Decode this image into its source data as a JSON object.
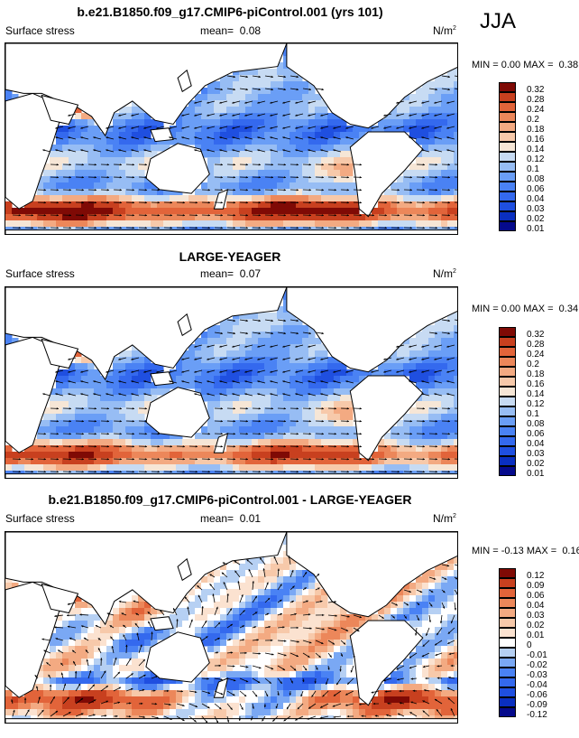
{
  "season": "JJA",
  "units_base": "N/m",
  "units_exp": "2",
  "panels": [
    {
      "title": "b.e21.B1850.f09_g17.CMIP6-piControl.001 (yrs 101)",
      "variable": "Surface stress",
      "mean_label": "mean=",
      "mean": "0.08",
      "min_label": "MIN =",
      "min": "0.00",
      "max_label": "MAX =",
      "max": "0.38"
    },
    {
      "title": "LARGE-YEAGER",
      "variable": "Surface stress",
      "mean_label": "mean=",
      "mean": "0.07",
      "min_label": "MIN =",
      "min": "0.00",
      "max_label": "MAX =",
      "max": "0.34"
    },
    {
      "title": "b.e21.B1850.f09_g17.CMIP6-piControl.001 - LARGE-YEAGER",
      "variable": "Surface stress",
      "mean_label": "mean=",
      "mean": "0.01",
      "min_label": "MIN =",
      "min": "-0.13",
      "max_label": "MAX =",
      "max": "0.16"
    }
  ],
  "chart_data": [
    {
      "type": "heatmap",
      "subtype": "global map, filled contours with wind-stress vectors",
      "title": "b.e21.B1850.f09_g17.CMIP6-piControl.001 (yrs 101)",
      "variable": "Surface stress",
      "units": "N/m^2",
      "mean": 0.08,
      "min": 0.0,
      "max": 0.38,
      "colorbar_levels": [
        0.01,
        0.02,
        0.03,
        0.04,
        0.06,
        0.08,
        0.1,
        0.12,
        0.14,
        0.16,
        0.18,
        0.2,
        0.24,
        0.28,
        0.32
      ],
      "colorbar_labels": [
        "0.01",
        "0.02",
        "0.03",
        "0.04",
        "0.06",
        "0.08",
        "0.1",
        "0.12",
        "0.14",
        "0.16",
        "0.18",
        "0.2",
        "0.24",
        "0.28",
        "0.32"
      ],
      "colorbar_colors": [
        "#050a8c",
        "#0a2fc0",
        "#1f4fe0",
        "#3469ee",
        "#4a82f4",
        "#6a9ef6",
        "#97bdf4",
        "#c7dbf3",
        "#f6e6d6",
        "#f7c9aa",
        "#f3aa82",
        "#ec875a",
        "#e2643a",
        "#c8401f",
        "#7f0a05"
      ]
    },
    {
      "type": "heatmap",
      "subtype": "global map, filled contours with wind-stress vectors",
      "title": "LARGE-YEAGER",
      "variable": "Surface stress",
      "units": "N/m^2",
      "mean": 0.07,
      "min": 0.0,
      "max": 0.34,
      "colorbar_levels": [
        0.01,
        0.02,
        0.03,
        0.04,
        0.06,
        0.08,
        0.1,
        0.12,
        0.14,
        0.16,
        0.18,
        0.2,
        0.24,
        0.28,
        0.32
      ],
      "colorbar_labels": [
        "0.01",
        "0.02",
        "0.03",
        "0.04",
        "0.06",
        "0.08",
        "0.1",
        "0.12",
        "0.14",
        "0.16",
        "0.18",
        "0.2",
        "0.24",
        "0.28",
        "0.32"
      ],
      "colorbar_colors": [
        "#050a8c",
        "#0a2fc0",
        "#1f4fe0",
        "#3469ee",
        "#4a82f4",
        "#6a9ef6",
        "#97bdf4",
        "#c7dbf3",
        "#f6e6d6",
        "#f7c9aa",
        "#f3aa82",
        "#ec875a",
        "#e2643a",
        "#c8401f",
        "#7f0a05"
      ]
    },
    {
      "type": "heatmap",
      "subtype": "global map, filled contours with wind-stress difference vectors",
      "title": "b.e21.B1850.f09_g17.CMIP6-piControl.001 - LARGE-YEAGER",
      "variable": "Surface stress",
      "units": "N/m^2",
      "mean": 0.01,
      "min": -0.13,
      "max": 0.16,
      "colorbar_levels": [
        -0.12,
        -0.09,
        -0.06,
        -0.04,
        -0.03,
        -0.02,
        -0.01,
        0,
        0.01,
        0.02,
        0.03,
        0.04,
        0.06,
        0.09,
        0.12
      ],
      "colorbar_labels": [
        "-0.12",
        "-0.09",
        "-0.06",
        "-0.04",
        "-0.03",
        "-0.02",
        "-0.01",
        "0",
        "0.01",
        "0.02",
        "0.03",
        "0.04",
        "0.06",
        "0.09",
        "0.12"
      ],
      "colorbar_colors": [
        "#050a8c",
        "#0a2fc0",
        "#1f4fe0",
        "#3469ee",
        "#4a82f4",
        "#7aa8f4",
        "#b6d0f3",
        "#ffffff",
        "#fbe2d0",
        "#f7c9aa",
        "#f3aa82",
        "#ec875a",
        "#e2643a",
        "#c8401f",
        "#7f0a05"
      ]
    }
  ]
}
